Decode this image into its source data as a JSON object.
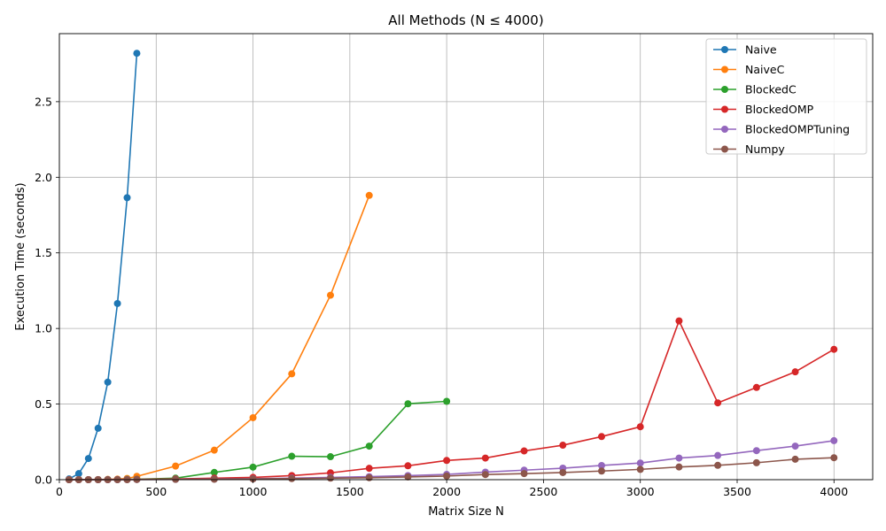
{
  "chart_data": {
    "type": "line",
    "title": "All Methods (N ≤ 4000)",
    "xlabel": "Matrix Size N",
    "ylabel": "Execution Time (seconds)",
    "xlim": [
      0,
      4200
    ],
    "ylim": [
      0,
      2.95
    ],
    "x_ticks": [
      0,
      500,
      1000,
      1500,
      2000,
      2500,
      3000,
      3500,
      4000
    ],
    "y_ticks": [
      0.0,
      0.5,
      1.0,
      1.5,
      2.0,
      2.5
    ],
    "x_tick_labels": [
      "0",
      "500",
      "1000",
      "1500",
      "2000",
      "2500",
      "3000",
      "3500",
      "4000"
    ],
    "y_tick_labels": [
      "0.0",
      "0.5",
      "1.0",
      "1.5",
      "2.0",
      "2.5"
    ],
    "grid": true,
    "legend_position": "top-right",
    "series": [
      {
        "name": "Naive",
        "color": "#1f77b4",
        "x": [
          50,
          100,
          150,
          200,
          250,
          300,
          350,
          400
        ],
        "y": [
          0.005,
          0.04,
          0.14,
          0.34,
          0.645,
          1.165,
          1.865,
          2.82
        ]
      },
      {
        "name": "NaiveC",
        "color": "#ff7f0e",
        "x": [
          50,
          100,
          150,
          200,
          250,
          300,
          350,
          400,
          600,
          800,
          1000,
          1200,
          1400,
          1600
        ],
        "y": [
          0.0,
          0.0,
          0.0,
          0.001,
          0.002,
          0.004,
          0.008,
          0.022,
          0.09,
          0.195,
          0.41,
          0.7,
          1.22,
          1.88
        ]
      },
      {
        "name": "BlockedC",
        "color": "#2ca02c",
        "x": [
          50,
          100,
          150,
          200,
          250,
          300,
          350,
          400,
          600,
          800,
          1000,
          1200,
          1400,
          1600,
          1800,
          2000
        ],
        "y": [
          0.0,
          0.0,
          0.0,
          0.0,
          0.001,
          0.001,
          0.002,
          0.003,
          0.01,
          0.048,
          0.083,
          0.155,
          0.152,
          0.222,
          0.502,
          0.518
        ]
      },
      {
        "name": "BlockedOMP",
        "color": "#d62728",
        "x": [
          50,
          100,
          150,
          200,
          250,
          300,
          350,
          400,
          600,
          800,
          1000,
          1200,
          1400,
          1600,
          1800,
          2000,
          2200,
          2400,
          2600,
          2800,
          3000,
          3200,
          3400,
          3600,
          3800,
          4000
        ],
        "y": [
          0.0,
          0.0,
          0.0,
          0.0,
          0.0,
          0.001,
          0.001,
          0.002,
          0.005,
          0.01,
          0.015,
          0.027,
          0.045,
          0.075,
          0.092,
          0.127,
          0.143,
          0.19,
          0.228,
          0.285,
          0.35,
          1.05,
          0.508,
          0.61,
          0.713,
          0.862
        ]
      },
      {
        "name": "BlockedOMPTuning",
        "color": "#9467bd",
        "x": [
          50,
          100,
          150,
          200,
          250,
          300,
          350,
          400,
          600,
          800,
          1000,
          1200,
          1400,
          1600,
          1800,
          2000,
          2200,
          2400,
          2600,
          2800,
          3000,
          3200,
          3400,
          3600,
          3800,
          4000
        ],
        "y": [
          0.0,
          0.0,
          0.0,
          0.0,
          0.0,
          0.0,
          0.001,
          0.001,
          0.002,
          0.004,
          0.006,
          0.01,
          0.015,
          0.02,
          0.027,
          0.035,
          0.05,
          0.063,
          0.076,
          0.094,
          0.11,
          0.143,
          0.16,
          0.192,
          0.222,
          0.258
        ]
      },
      {
        "name": "Numpy",
        "color": "#8c564b",
        "x": [
          50,
          100,
          150,
          200,
          250,
          300,
          350,
          400,
          600,
          800,
          1000,
          1200,
          1400,
          1600,
          1800,
          2000,
          2200,
          2400,
          2600,
          2800,
          3000,
          3200,
          3400,
          3600,
          3800,
          4000
        ],
        "y": [
          0.0,
          0.0,
          0.0,
          0.0,
          0.0,
          0.0,
          0.0,
          0.001,
          0.002,
          0.003,
          0.005,
          0.007,
          0.01,
          0.013,
          0.018,
          0.024,
          0.034,
          0.04,
          0.047,
          0.057,
          0.068,
          0.084,
          0.095,
          0.112,
          0.135,
          0.145
        ]
      }
    ]
  }
}
